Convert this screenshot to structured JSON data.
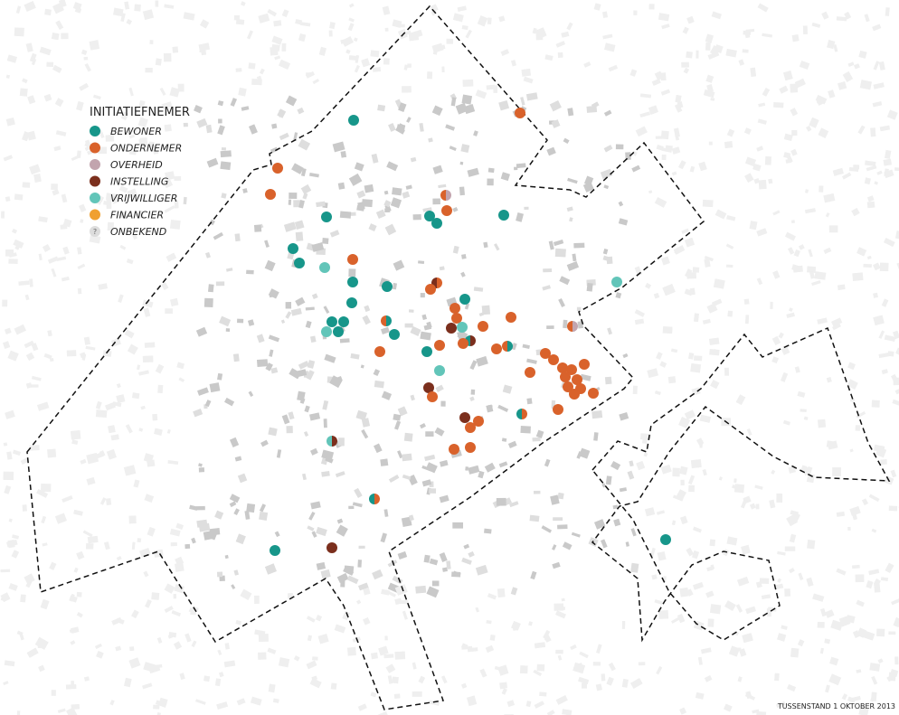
{
  "legend": {
    "title": "INITIATIEFNEMER",
    "items": [
      {
        "label": "BEWONER",
        "color": "#17968a"
      },
      {
        "label": "ONDERNEMER",
        "color": "#d9622b"
      },
      {
        "label": "OVERHEID",
        "color": "#c2a4ae"
      },
      {
        "label": "INSTELLING",
        "color": "#7b2f1d"
      },
      {
        "label": "VRIJWILLIGER",
        "color": "#62c5b9"
      },
      {
        "label": "FINANCIER",
        "color": "#f0a030"
      },
      {
        "label": "ONBEKEND",
        "color": "#dddddd",
        "symbol": "?"
      }
    ]
  },
  "footer": "TUSSENSTAND 1 OKTOBER 2013"
}
